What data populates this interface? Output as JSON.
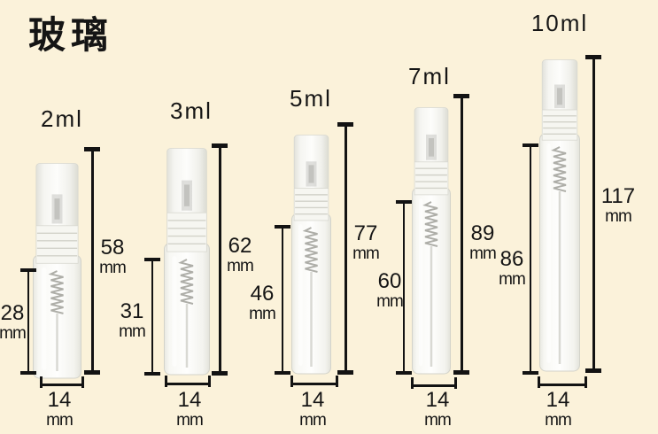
{
  "page": {
    "title": "玻璃",
    "unit": "mm",
    "background_color": "#fbf2da",
    "text_color": "#151515",
    "line_color": "#131313"
  },
  "bottles": [
    {
      "volume_label": "2ml",
      "total_height": "58",
      "body_height": "28",
      "bottle_width": "14"
    },
    {
      "volume_label": "3ml",
      "total_height": "62",
      "body_height": "31",
      "bottle_width": "14"
    },
    {
      "volume_label": "5ml",
      "total_height": "77",
      "body_height": "46",
      "bottle_width": "14"
    },
    {
      "volume_label": "7ml",
      "total_height": "89",
      "body_height": "60",
      "bottle_width": "14"
    },
    {
      "volume_label": "10ml",
      "total_height": "117",
      "body_height": "86",
      "bottle_width": "14"
    }
  ]
}
